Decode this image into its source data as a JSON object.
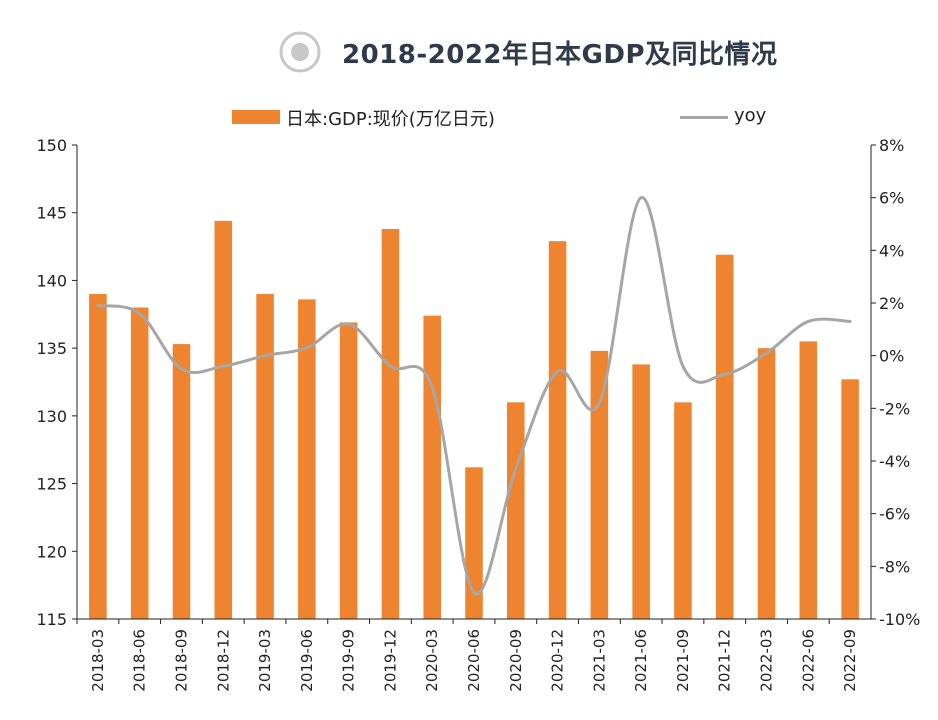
{
  "title": "2018-2022年日本GDP及同比情况",
  "colors": {
    "bar": "#ee8430",
    "line": "#a6a6a6",
    "axis": "#222222",
    "title": "#2f3b4a"
  },
  "chart_data": {
    "type": "bar",
    "title": "2018-2022年日本GDP及同比情况",
    "categories": [
      "2018-03",
      "2018-06",
      "2018-09",
      "2018-12",
      "2019-03",
      "2019-06",
      "2019-09",
      "2019-12",
      "2020-03",
      "2020-06",
      "2020-09",
      "2020-12",
      "2021-03",
      "2021-06",
      "2021-09",
      "2021-12",
      "2022-03",
      "2022-06",
      "2022-09"
    ],
    "series": [
      {
        "name": "日本:GDP:现价(万亿日元)",
        "type": "bar",
        "axis": "left",
        "values": [
          139.0,
          138.0,
          135.3,
          144.4,
          139.0,
          138.6,
          136.9,
          143.8,
          137.4,
          126.2,
          131.0,
          142.9,
          134.8,
          133.8,
          131.0,
          141.9,
          135.0,
          135.5,
          132.7
        ]
      },
      {
        "name": "yoy",
        "type": "line",
        "axis": "right",
        "unit": "%",
        "values": [
          1.9,
          1.6,
          -0.5,
          -0.4,
          0.0,
          0.3,
          1.2,
          -0.4,
          -1.2,
          -9.0,
          -4.3,
          -0.6,
          -1.8,
          6.0,
          -0.4,
          -0.7,
          0.1,
          1.3,
          1.3
        ]
      }
    ],
    "ylim_left": [
      115,
      150
    ],
    "yticks_left": [
      "150",
      "145",
      "140",
      "135",
      "130",
      "125",
      "120",
      "115"
    ],
    "ylim_right": [
      -10,
      8
    ],
    "yticks_right": [
      "8%",
      "6%",
      "4%",
      "2%",
      "0%",
      "-2%",
      "-4%",
      "-6%",
      "-8%",
      "-10%"
    ],
    "grid": false,
    "legend": "top-center"
  }
}
